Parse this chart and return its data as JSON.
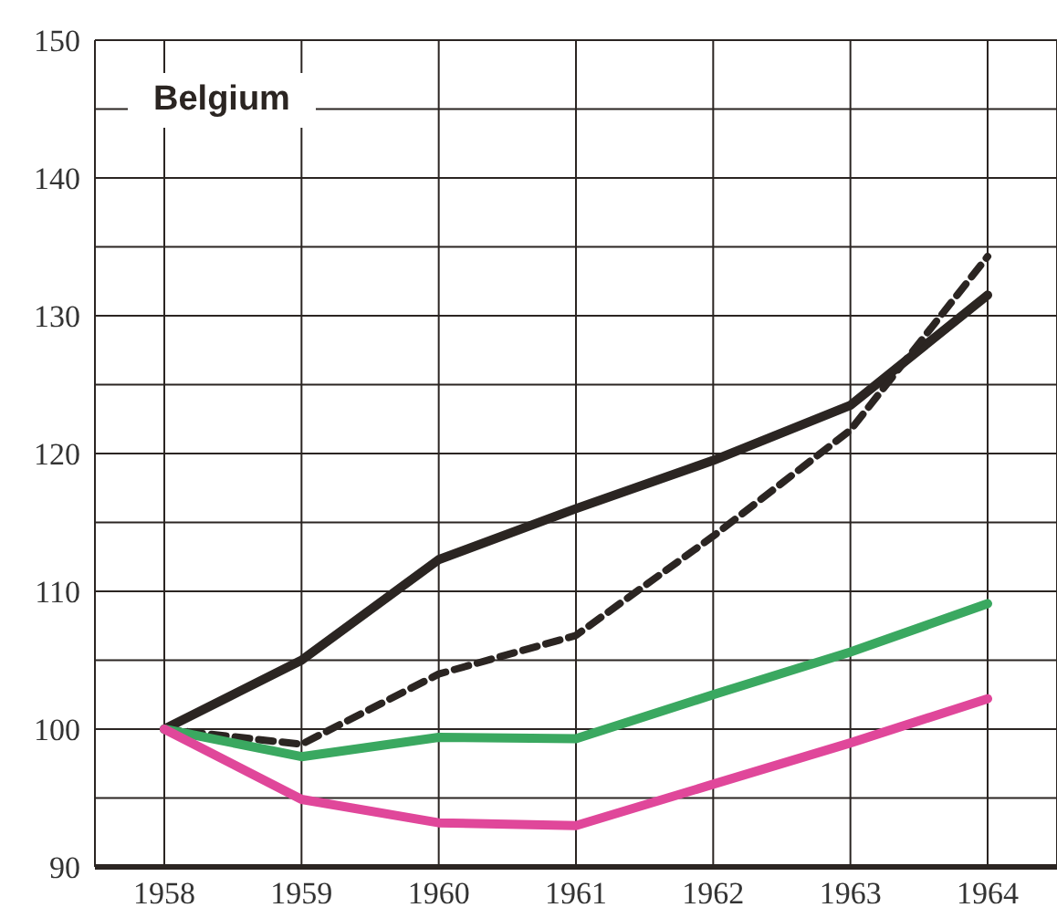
{
  "chart_data": {
    "type": "line",
    "title": "Belgium",
    "categories": [
      "1958",
      "1959",
      "1960",
      "1961",
      "1962",
      "1963",
      "1964"
    ],
    "series": [
      {
        "color": "#2b2522",
        "values": [
          100,
          105,
          112.3,
          116,
          119.5,
          123.5,
          131.5
        ]
      },
      {
        "color": "#2b2522",
        "line_style": "dashed",
        "values": [
          100,
          98.9,
          104,
          106.8,
          114,
          121.7,
          134.3
        ]
      },
      {
        "color": "#3aa860",
        "values": [
          100,
          98,
          99.4,
          99.3,
          102.5,
          105.6,
          109.1
        ]
      },
      {
        "color": "#e0479a",
        "values": [
          100,
          94.9,
          93.2,
          93,
          96,
          99,
          102.2
        ]
      }
    ],
    "ylim": [
      90,
      150
    ],
    "yticks": [
      90,
      {
        "value": 95,
        "label": null
      },
      100,
      {
        "value": 105,
        "label": null
      },
      110,
      {
        "value": 115,
        "label": null
      },
      120,
      {
        "value": 125,
        "label": null
      },
      130,
      {
        "value": 135,
        "label": null
      },
      140,
      {
        "value": 145,
        "label": null
      },
      150
    ],
    "grid": true,
    "marker": "none",
    "line_style": "solid"
  }
}
